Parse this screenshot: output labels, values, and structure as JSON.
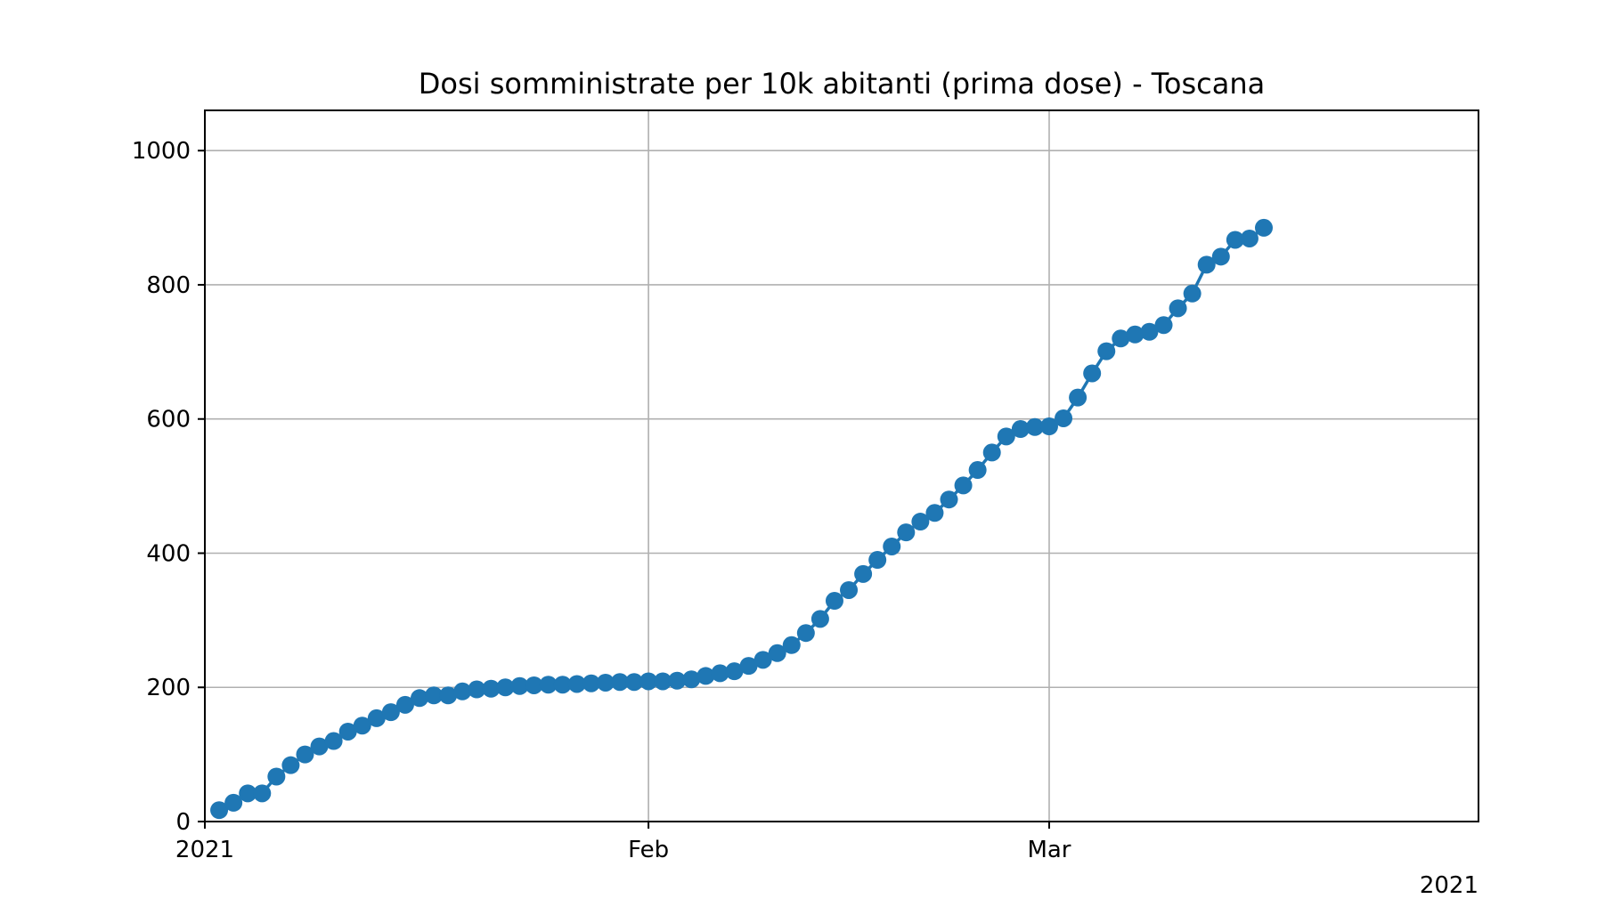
{
  "chart_data": {
    "type": "line",
    "title": "Dosi somministrate per 10k abitanti (prima dose) - Toscana",
    "xlabel": "",
    "ylabel": "",
    "x_start": "2021-01-01",
    "x_end": "2021-03-31",
    "xticks": [
      {
        "date": "2021-01-01",
        "label": "2021"
      },
      {
        "date": "2021-02-01",
        "label": "Feb"
      },
      {
        "date": "2021-03-01",
        "label": "Mar"
      }
    ],
    "x_offset_label": "2021",
    "ylim": [
      0,
      1060
    ],
    "yticks": [
      0,
      200,
      400,
      600,
      800,
      1000
    ],
    "grid": true,
    "marker": "circle",
    "series": [
      {
        "color": "#1f77b4",
        "points": [
          [
            "2021-01-02",
            17
          ],
          [
            "2021-01-03",
            28
          ],
          [
            "2021-01-04",
            42
          ],
          [
            "2021-01-05",
            42
          ],
          [
            "2021-01-06",
            67
          ],
          [
            "2021-01-07",
            84
          ],
          [
            "2021-01-08",
            100
          ],
          [
            "2021-01-09",
            112
          ],
          [
            "2021-01-10",
            120
          ],
          [
            "2021-01-11",
            134
          ],
          [
            "2021-01-12",
            143
          ],
          [
            "2021-01-13",
            154
          ],
          [
            "2021-01-14",
            163
          ],
          [
            "2021-01-15",
            174
          ],
          [
            "2021-01-16",
            184
          ],
          [
            "2021-01-17",
            188
          ],
          [
            "2021-01-18",
            188
          ],
          [
            "2021-01-19",
            194
          ],
          [
            "2021-01-20",
            197
          ],
          [
            "2021-01-21",
            198
          ],
          [
            "2021-01-22",
            200
          ],
          [
            "2021-01-23",
            202
          ],
          [
            "2021-01-24",
            203
          ],
          [
            "2021-01-25",
            204
          ],
          [
            "2021-01-26",
            204
          ],
          [
            "2021-01-27",
            205
          ],
          [
            "2021-01-28",
            206
          ],
          [
            "2021-01-29",
            207
          ],
          [
            "2021-01-30",
            208
          ],
          [
            "2021-01-31",
            208
          ],
          [
            "2021-02-01",
            209
          ],
          [
            "2021-02-02",
            209
          ],
          [
            "2021-02-03",
            210
          ],
          [
            "2021-02-04",
            212
          ],
          [
            "2021-02-05",
            217
          ],
          [
            "2021-02-06",
            221
          ],
          [
            "2021-02-07",
            224
          ],
          [
            "2021-02-08",
            232
          ],
          [
            "2021-02-09",
            241
          ],
          [
            "2021-02-10",
            251
          ],
          [
            "2021-02-11",
            263
          ],
          [
            "2021-02-12",
            281
          ],
          [
            "2021-02-13",
            302
          ],
          [
            "2021-02-14",
            329
          ],
          [
            "2021-02-15",
            345
          ],
          [
            "2021-02-16",
            369
          ],
          [
            "2021-02-17",
            390
          ],
          [
            "2021-02-18",
            410
          ],
          [
            "2021-02-19",
            431
          ],
          [
            "2021-02-20",
            447
          ],
          [
            "2021-02-21",
            460
          ],
          [
            "2021-02-22",
            480
          ],
          [
            "2021-02-23",
            501
          ],
          [
            "2021-02-24",
            524
          ],
          [
            "2021-02-25",
            550
          ],
          [
            "2021-02-26",
            574
          ],
          [
            "2021-02-27",
            585
          ],
          [
            "2021-02-28",
            588
          ],
          [
            "2021-03-01",
            589
          ],
          [
            "2021-03-02",
            601
          ],
          [
            "2021-03-03",
            632
          ],
          [
            "2021-03-04",
            668
          ],
          [
            "2021-03-05",
            701
          ],
          [
            "2021-03-06",
            720
          ],
          [
            "2021-03-07",
            726
          ],
          [
            "2021-03-08",
            730
          ],
          [
            "2021-03-09",
            740
          ],
          [
            "2021-03-10",
            765
          ],
          [
            "2021-03-11",
            787
          ],
          [
            "2021-03-12",
            830
          ],
          [
            "2021-03-13",
            842
          ],
          [
            "2021-03-14",
            867
          ],
          [
            "2021-03-15",
            869
          ],
          [
            "2021-03-16",
            885
          ]
        ]
      }
    ]
  }
}
